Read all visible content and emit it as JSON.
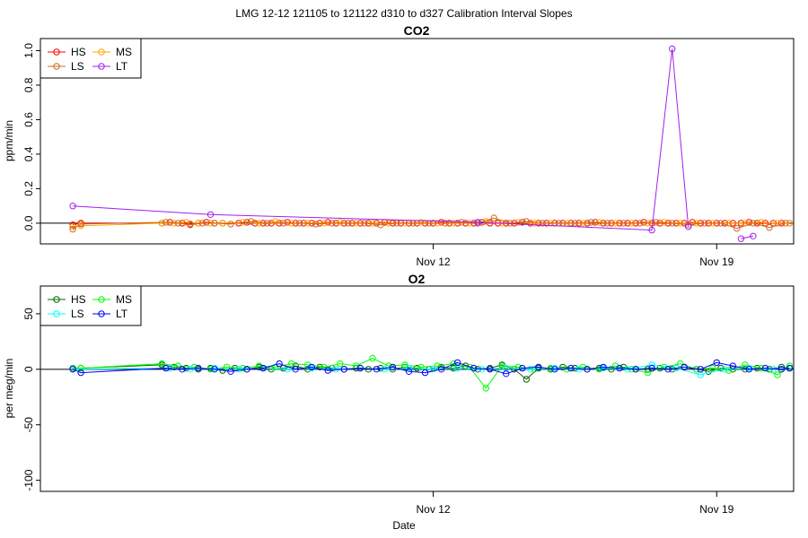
{
  "figure": {
    "title": "LMG   12-12    121105 to 121122    d310 to d327   Calibration Interval Slopes",
    "xlabel": "Date"
  },
  "chart_data": [
    {
      "type": "line",
      "title": "CO2",
      "ylabel": "ppm/min",
      "xlabel": "",
      "xlim": [
        2.3,
        20.9
      ],
      "ylim": [
        -0.12,
        1.07
      ],
      "x_ticks": [
        {
          "x": 12,
          "label": "Nov 12"
        },
        {
          "x": 19,
          "label": "Nov 19"
        }
      ],
      "y_ticks": [
        0.0,
        0.2,
        0.4,
        0.6,
        0.8,
        1.0
      ],
      "y_tick_labels": [
        "0.0",
        "0.2",
        "0.4",
        "0.6",
        "0.8",
        "1.0"
      ],
      "hline": 0,
      "legend": {
        "position": "top-left",
        "columns": 2
      },
      "series": [
        {
          "name": "HS",
          "color": "#ff0000",
          "x": [
            3.1,
            3.3,
            5.3,
            5.5,
            5.8,
            6.0,
            6.2,
            6.4,
            6.6,
            6.8,
            7.2,
            7.4,
            7.6,
            7.8,
            8.0,
            8.2,
            8.4,
            8.6,
            8.8,
            9.0,
            9.2,
            9.4,
            9.6,
            9.8,
            10.0,
            10.2,
            10.4,
            10.6,
            10.8,
            11.0,
            11.2,
            11.4,
            11.6,
            11.8,
            12.0,
            12.2,
            12.4,
            12.6,
            12.8,
            13.0,
            13.2,
            13.4,
            13.6,
            13.8,
            14.0,
            14.2,
            14.4,
            14.6,
            14.8,
            15.0,
            15.2,
            15.4,
            15.6,
            15.8,
            16.0,
            16.2,
            16.4,
            16.6,
            16.8,
            17.0,
            17.2,
            17.4,
            17.6,
            17.8,
            18.0,
            18.2,
            18.4,
            18.6,
            18.8,
            19.0,
            19.2,
            19.4,
            19.6,
            19.8,
            20.0,
            20.2,
            20.4,
            20.6,
            20.8
          ],
          "values": [
            -0.01,
            0.0,
            0.0,
            0.005,
            0.0,
            -0.005,
            0.0,
            0.005,
            0.0,
            0.0,
            0.0,
            0.005,
            0.0,
            0.0,
            0.0,
            0.0,
            0.005,
            0.0,
            0.0,
            0.0,
            0.0,
            0.005,
            0.0,
            0.0,
            0.0,
            0.0,
            0.0,
            0.0,
            0.005,
            0.0,
            0.0,
            0.0,
            0.0,
            0.0,
            0.0,
            0.005,
            0.0,
            0.0,
            0.0,
            0.0,
            0.005,
            0.0,
            0.0,
            0.0,
            0.0,
            0.005,
            0.0,
            0.0,
            0.0,
            0.0,
            0.0,
            0.0,
            0.0,
            0.0,
            0.005,
            0.0,
            0.0,
            0.0,
            0.0,
            0.0,
            0.005,
            0.0,
            0.0,
            0.0,
            0.0,
            0.0,
            0.005,
            0.0,
            0.0,
            0.0,
            0.0,
            0.0,
            0.0,
            0.005,
            0.0,
            0.0,
            0.0,
            0.0,
            0.0
          ]
        },
        {
          "name": "MS",
          "color": "#ffa500",
          "x": [
            3.1,
            3.3,
            5.3,
            5.6,
            5.9,
            6.2,
            6.5,
            6.8,
            7.3,
            7.7,
            8.1,
            8.5,
            8.9,
            9.3,
            9.7,
            10.1,
            10.5,
            10.9,
            11.3,
            11.7,
            12.1,
            12.5,
            12.9,
            13.3,
            13.7,
            14.1,
            14.5,
            14.9,
            15.3,
            15.7,
            16.1,
            16.5,
            16.9,
            17.3,
            17.7,
            18.1,
            18.5,
            18.9,
            19.3,
            19.7,
            20.1,
            20.5,
            20.8
          ],
          "values": [
            -0.02,
            -0.015,
            0.0,
            0.0,
            0.005,
            0.0,
            0.0,
            0.0,
            0.005,
            0.0,
            0.01,
            0.0,
            0.0,
            0.0,
            0.005,
            0.0,
            0.0,
            0.0,
            0.0,
            0.005,
            0.0,
            0.0,
            0.0,
            0.01,
            0.0,
            0.005,
            0.0,
            0.0,
            0.0,
            0.0,
            0.005,
            0.0,
            0.0,
            0.0,
            0.005,
            0.0,
            0.0,
            0.0,
            0.0,
            0.0,
            0.005,
            0.0,
            0.0
          ]
        },
        {
          "name": "LS",
          "color": "#d2691e",
          "x": [
            3.1,
            3.3,
            5.4,
            5.7,
            6.0,
            6.3,
            6.6,
            7.0,
            7.5,
            7.9,
            8.3,
            8.7,
            9.1,
            9.5,
            9.9,
            10.3,
            10.7,
            11.1,
            11.5,
            11.9,
            12.3,
            12.7,
            13.1,
            13.5,
            13.9,
            14.3,
            14.7,
            15.1,
            15.5,
            15.9,
            16.3,
            16.7,
            17.1,
            17.5,
            17.9,
            18.3,
            18.7,
            19.1,
            19.5,
            19.9,
            20.3,
            20.7
          ],
          "values": [
            -0.035,
            -0.005,
            0.005,
            0.0,
            -0.01,
            0.0,
            0.0,
            -0.005,
            0.01,
            0.0,
            0.0,
            0.0,
            -0.005,
            0.0,
            0.0,
            0.0,
            -0.01,
            0.0,
            0.0,
            0.0,
            0.0,
            0.005,
            0.0,
            0.03,
            0.0,
            0.01,
            0.0,
            0.0,
            0.0,
            0.005,
            0.0,
            0.0,
            0.0,
            0.005,
            0.0,
            -0.01,
            0.0,
            0.0,
            -0.03,
            0.0,
            -0.025,
            0.0
          ]
        },
        {
          "name": "LT",
          "color": "#a020f0",
          "x": [
            3.1,
            6.5,
            13.1,
            17.4,
            17.9,
            18.3,
            18.5,
            19.6,
            19.9
          ],
          "values": [
            0.1,
            0.05,
            0.005,
            -0.04,
            1.01,
            -0.02,
            null,
            -0.09,
            -0.075
          ]
        }
      ]
    },
    {
      "type": "line",
      "title": "O2",
      "ylabel": "per meg/min",
      "xlabel": "Date",
      "xlim": [
        2.3,
        20.9
      ],
      "ylim": [
        -110,
        75
      ],
      "x_ticks": [
        {
          "x": 12,
          "label": "Nov 12"
        },
        {
          "x": 19,
          "label": "Nov 19"
        }
      ],
      "y_ticks": [
        -100,
        -50,
        0,
        50
      ],
      "y_tick_labels": [
        "-100",
        "-50",
        "0",
        "50"
      ],
      "hline": 0,
      "legend": {
        "position": "top-left",
        "columns": 2
      },
      "series": [
        {
          "name": "HS",
          "color": "#006400",
          "x": [
            3.1,
            3.3,
            5.3,
            5.6,
            5.9,
            6.2,
            6.5,
            6.8,
            7.1,
            7.4,
            7.7,
            8.0,
            8.3,
            8.6,
            8.9,
            9.2,
            9.5,
            9.8,
            10.1,
            10.4,
            10.7,
            11.0,
            11.3,
            11.6,
            11.9,
            12.2,
            12.5,
            12.8,
            13.1,
            13.4,
            13.7,
            14.0,
            14.3,
            14.6,
            14.9,
            15.2,
            15.5,
            15.8,
            16.1,
            16.4,
            16.7,
            17.0,
            17.3,
            17.6,
            17.9,
            18.2,
            18.5,
            18.8,
            19.1,
            19.4,
            19.7,
            20.0,
            20.3,
            20.6,
            20.8
          ],
          "values": [
            1,
            1,
            4,
            2,
            1,
            0,
            1,
            -1,
            1,
            0,
            2,
            0,
            1,
            3,
            0,
            2,
            1,
            0,
            1,
            0,
            1,
            0,
            2,
            1,
            0,
            2,
            1,
            3,
            0,
            1,
            4,
            0,
            -9,
            1,
            0,
            2,
            1,
            0,
            1,
            0,
            2,
            0,
            0,
            1,
            0,
            2,
            0,
            -2,
            1,
            0,
            0,
            1,
            0,
            2,
            1
          ]
        },
        {
          "name": "MS",
          "color": "#00ff00",
          "x": [
            3.1,
            3.3,
            5.3,
            5.7,
            6.1,
            6.5,
            6.9,
            7.3,
            7.7,
            8.1,
            8.5,
            8.9,
            9.3,
            9.7,
            10.1,
            10.5,
            10.9,
            11.3,
            11.7,
            12.1,
            12.5,
            12.9,
            13.3,
            13.7,
            14.1,
            14.5,
            14.9,
            15.3,
            15.7,
            16.1,
            16.5,
            16.9,
            17.3,
            17.7,
            18.1,
            18.5,
            18.9,
            19.3,
            19.7,
            20.1,
            20.5,
            20.8
          ],
          "values": [
            1,
            1,
            5,
            3,
            2,
            0,
            2,
            1,
            3,
            2,
            5,
            4,
            2,
            5,
            3,
            10,
            3,
            4,
            2,
            3,
            5,
            2,
            -17,
            3,
            2,
            0,
            1,
            0,
            2,
            0,
            3,
            0,
            -3,
            2,
            5,
            0,
            1,
            -1,
            4,
            1,
            -5,
            3
          ]
        },
        {
          "name": "LS",
          "color": "#00ffff",
          "x": [
            3.1,
            5.5,
            6.0,
            6.6,
            7.2,
            7.8,
            8.4,
            9.0,
            9.6,
            10.2,
            10.8,
            11.4,
            12.0,
            12.6,
            13.2,
            13.8,
            14.4,
            15.0,
            15.6,
            16.2,
            16.8,
            17.4,
            18.0,
            18.6,
            19.2,
            19.8,
            20.4,
            20.8
          ],
          "values": [
            0,
            1,
            0,
            1,
            0,
            1,
            0,
            1,
            0,
            1,
            0,
            1,
            0,
            1,
            0,
            1,
            0,
            1,
            0,
            1,
            0,
            4,
            1,
            -5,
            0,
            1,
            0,
            1
          ]
        },
        {
          "name": "LT",
          "color": "#0000ff",
          "x": [
            3.1,
            3.3,
            5.4,
            5.8,
            6.2,
            6.6,
            7.0,
            7.4,
            7.8,
            8.2,
            8.6,
            9.0,
            9.4,
            9.8,
            10.2,
            10.6,
            11.0,
            11.4,
            11.8,
            12.2,
            12.6,
            13.0,
            13.4,
            13.8,
            14.2,
            14.6,
            15.0,
            15.4,
            15.8,
            16.2,
            16.6,
            17.0,
            17.4,
            17.8,
            18.2,
            18.6,
            19.0,
            19.4,
            19.8,
            20.2,
            20.6,
            20.8
          ],
          "values": [
            0,
            -3,
            1,
            0,
            1,
            0,
            -2,
            0,
            1,
            5,
            0,
            2,
            -1,
            0,
            1,
            0,
            2,
            -2,
            -3,
            0,
            6,
            1,
            0,
            -4,
            1,
            2,
            0,
            1,
            0,
            2,
            1,
            0,
            1,
            0,
            2,
            0,
            6,
            3,
            0,
            1,
            0,
            1
          ]
        }
      ]
    }
  ]
}
